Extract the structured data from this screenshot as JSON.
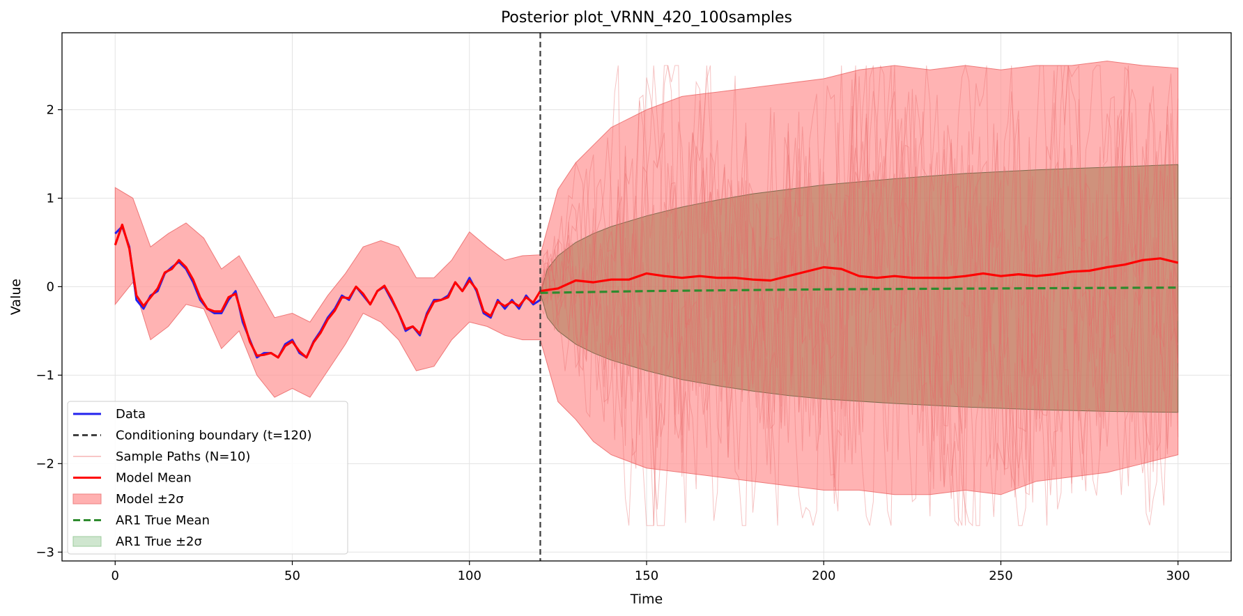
{
  "chart_data": {
    "type": "line",
    "title": "Posterior plot_VRNN_420_100samples",
    "xlabel": "Time",
    "ylabel": "Value",
    "xlim": [
      -15,
      315
    ],
    "ylim": [
      -3.1,
      2.87
    ],
    "xticks": [
      0,
      50,
      100,
      150,
      200,
      250,
      300
    ],
    "xtick_labels": [
      "0",
      "50",
      "100",
      "150",
      "200",
      "250",
      "300"
    ],
    "yticks": [
      -3,
      -2,
      -1,
      0,
      1,
      2
    ],
    "ytick_labels": [
      "−3",
      "−2",
      "−1",
      "0",
      "1",
      "2"
    ],
    "grid": true,
    "legend_position": "lower-left",
    "conditioning_boundary": 120,
    "colors": {
      "data": "#2222ee",
      "model_mean": "#ff0000",
      "model_band": "#ff9999",
      "sample": "#f07a7a",
      "ar1_mean": "#2e8b2e",
      "ar1_band": "#a8764f",
      "boundary": "#404040"
    },
    "series": [
      {
        "name": "Data",
        "x": [
          0,
          2,
          4,
          6,
          8,
          10,
          12,
          14,
          16,
          18,
          20,
          22,
          24,
          26,
          28,
          30,
          32,
          34,
          36,
          38,
          40,
          42,
          44,
          46,
          48,
          50,
          52,
          54,
          56,
          58,
          60,
          62,
          64,
          66,
          68,
          70,
          72,
          74,
          76,
          78,
          80,
          82,
          84,
          86,
          88,
          90,
          92,
          94,
          96,
          98,
          100,
          102,
          104,
          106,
          108,
          110,
          112,
          114,
          116,
          118,
          120
        ],
        "y": [
          0.6,
          0.68,
          0.45,
          -0.15,
          -0.25,
          -0.1,
          -0.05,
          0.15,
          0.22,
          0.28,
          0.2,
          0.05,
          -0.15,
          -0.25,
          -0.3,
          -0.3,
          -0.15,
          -0.05,
          -0.4,
          -0.6,
          -0.8,
          -0.75,
          -0.75,
          -0.8,
          -0.65,
          -0.6,
          -0.75,
          -0.8,
          -0.62,
          -0.5,
          -0.35,
          -0.25,
          -0.1,
          -0.15,
          0.0,
          -0.1,
          -0.2,
          -0.05,
          0.0,
          -0.15,
          -0.3,
          -0.5,
          -0.45,
          -0.55,
          -0.3,
          -0.15,
          -0.15,
          -0.1,
          0.05,
          -0.05,
          0.1,
          -0.05,
          -0.3,
          -0.35,
          -0.15,
          -0.25,
          -0.15,
          -0.25,
          -0.1,
          -0.2,
          -0.15
        ]
      },
      {
        "name": "Model Mean",
        "x": [
          0,
          2,
          4,
          6,
          8,
          10,
          12,
          14,
          16,
          18,
          20,
          22,
          24,
          26,
          28,
          30,
          32,
          34,
          36,
          38,
          40,
          42,
          44,
          46,
          48,
          50,
          52,
          54,
          56,
          58,
          60,
          62,
          64,
          66,
          68,
          70,
          72,
          74,
          76,
          78,
          80,
          82,
          84,
          86,
          88,
          90,
          92,
          94,
          96,
          98,
          100,
          102,
          104,
          106,
          108,
          110,
          112,
          114,
          116,
          118,
          120,
          125,
          130,
          135,
          140,
          145,
          150,
          155,
          160,
          165,
          170,
          175,
          180,
          185,
          190,
          195,
          200,
          205,
          210,
          215,
          220,
          225,
          230,
          235,
          240,
          245,
          250,
          255,
          260,
          265,
          270,
          275,
          280,
          285,
          290,
          295,
          300
        ],
        "y": [
          0.47,
          0.7,
          0.43,
          -0.1,
          -0.22,
          -0.12,
          -0.02,
          0.16,
          0.2,
          0.3,
          0.22,
          0.08,
          -0.12,
          -0.25,
          -0.28,
          -0.28,
          -0.12,
          -0.08,
          -0.35,
          -0.62,
          -0.78,
          -0.77,
          -0.75,
          -0.8,
          -0.67,
          -0.62,
          -0.73,
          -0.8,
          -0.63,
          -0.52,
          -0.37,
          -0.27,
          -0.12,
          -0.13,
          0.0,
          -0.08,
          -0.2,
          -0.05,
          0.01,
          -0.13,
          -0.3,
          -0.48,
          -0.45,
          -0.53,
          -0.32,
          -0.17,
          -0.15,
          -0.12,
          0.05,
          -0.05,
          0.07,
          -0.03,
          -0.28,
          -0.33,
          -0.17,
          -0.22,
          -0.17,
          -0.22,
          -0.12,
          -0.18,
          -0.05,
          -0.02,
          0.07,
          0.05,
          0.08,
          0.08,
          0.15,
          0.12,
          0.1,
          0.12,
          0.1,
          0.1,
          0.08,
          0.07,
          0.12,
          0.17,
          0.22,
          0.2,
          0.12,
          0.1,
          0.12,
          0.1,
          0.1,
          0.1,
          0.12,
          0.15,
          0.12,
          0.14,
          0.12,
          0.14,
          0.17,
          0.18,
          0.22,
          0.25,
          0.3,
          0.32,
          0.27
        ]
      },
      {
        "name": "AR1 True Mean",
        "x": [
          120,
          150,
          200,
          250,
          300
        ],
        "y": [
          -0.07,
          -0.05,
          -0.03,
          -0.02,
          -0.01
        ]
      }
    ],
    "bands": [
      {
        "name": "Model ±2σ",
        "x": [
          0,
          5,
          10,
          15,
          20,
          25,
          30,
          35,
          40,
          45,
          50,
          55,
          60,
          65,
          70,
          75,
          80,
          85,
          90,
          95,
          100,
          105,
          110,
          115,
          120,
          125,
          130,
          135,
          140,
          150,
          160,
          170,
          180,
          190,
          200,
          210,
          220,
          230,
          240,
          250,
          260,
          270,
          280,
          290,
          300
        ],
        "upper": [
          1.12,
          1.0,
          0.45,
          0.6,
          0.72,
          0.55,
          0.2,
          0.35,
          0.0,
          -0.35,
          -0.3,
          -0.4,
          -0.1,
          0.15,
          0.45,
          0.52,
          0.45,
          0.1,
          0.1,
          0.3,
          0.62,
          0.45,
          0.3,
          0.35,
          0.36,
          1.1,
          1.4,
          1.6,
          1.8,
          2.0,
          2.15,
          2.2,
          2.25,
          2.3,
          2.35,
          2.45,
          2.5,
          2.45,
          2.5,
          2.45,
          2.5,
          2.5,
          2.55,
          2.5,
          2.47
        ],
        "lower": [
          -0.2,
          0.05,
          -0.6,
          -0.45,
          -0.2,
          -0.25,
          -0.7,
          -0.5,
          -1.0,
          -1.25,
          -1.15,
          -1.25,
          -0.95,
          -0.65,
          -0.3,
          -0.4,
          -0.6,
          -0.95,
          -0.9,
          -0.6,
          -0.4,
          -0.45,
          -0.55,
          -0.6,
          -0.6,
          -1.3,
          -1.5,
          -1.75,
          -1.9,
          -2.05,
          -2.1,
          -2.15,
          -2.2,
          -2.25,
          -2.3,
          -2.3,
          -2.35,
          -2.35,
          -2.3,
          -2.35,
          -2.2,
          -2.15,
          -2.1,
          -2.0,
          -1.9
        ]
      },
      {
        "name": "AR1 True ±2σ",
        "x": [
          120,
          122,
          125,
          130,
          135,
          140,
          150,
          160,
          170,
          180,
          190,
          200,
          220,
          240,
          260,
          280,
          300
        ],
        "upper": [
          -0.07,
          0.2,
          0.35,
          0.5,
          0.6,
          0.68,
          0.8,
          0.9,
          0.98,
          1.05,
          1.1,
          1.15,
          1.22,
          1.28,
          1.32,
          1.35,
          1.38
        ],
        "lower": [
          -0.07,
          -0.35,
          -0.5,
          -0.65,
          -0.75,
          -0.83,
          -0.95,
          -1.05,
          -1.12,
          -1.18,
          -1.23,
          -1.27,
          -1.32,
          -1.36,
          -1.39,
          -1.41,
          -1.42
        ]
      }
    ],
    "sample_paths": {
      "name": "Sample Paths (N=10)",
      "count": 10,
      "x_start": 120,
      "x_end": 300,
      "spread": 2.0
    },
    "legend": [
      {
        "label": "Data",
        "kind": "line",
        "color": "#2222ee",
        "dash": ""
      },
      {
        "label": "Conditioning boundary (t=120)",
        "kind": "line",
        "color": "#404040",
        "dash": "8,5"
      },
      {
        "label": "Sample Paths (N=10)",
        "kind": "thin",
        "color": "#f3a3a3",
        "dash": ""
      },
      {
        "label": "Model Mean",
        "kind": "line",
        "color": "#ff0000",
        "dash": ""
      },
      {
        "label": "Model ±2σ",
        "kind": "patch",
        "color": "#ffb0b0",
        "stroke": "#ee8080"
      },
      {
        "label": "AR1 True Mean",
        "kind": "line",
        "color": "#2e8b2e",
        "dash": "10,5"
      },
      {
        "label": "AR1 True ±2σ",
        "kind": "patch",
        "color": "#cfe6cf",
        "stroke": "#9ccc9c"
      }
    ]
  }
}
